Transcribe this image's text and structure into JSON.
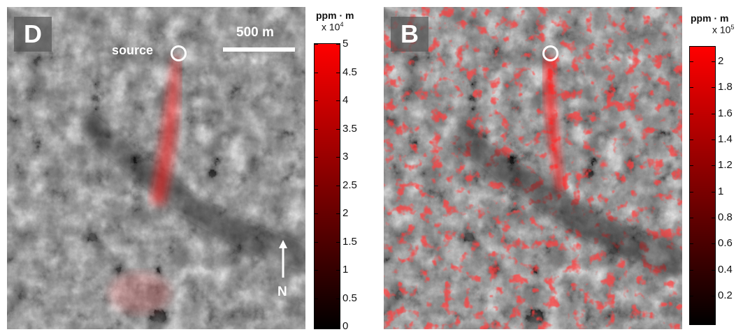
{
  "panel_d": {
    "letter": "D",
    "source_label": "source",
    "scale_label": "500 m",
    "north_label": "N"
  },
  "panel_b": {
    "letter": "B"
  },
  "colorbar_d": {
    "unit": "ppm · m",
    "exponent_base": "x 10",
    "exponent_power": "4",
    "ticks": [
      "0",
      "0.5",
      "1",
      "1.5",
      "2",
      "2.5",
      "3",
      "3.5",
      "4",
      "4.5",
      "5"
    ],
    "colors": {
      "low": "#000000",
      "high": "#ff0000"
    }
  },
  "colorbar_b": {
    "unit": "ppm · m",
    "exponent_base": "x 10",
    "exponent_power": "5",
    "ticks": [
      "0.2",
      "0.4",
      "0.6",
      "0.8",
      "1",
      "1.2",
      "1.4",
      "1.6",
      "1.8",
      "2"
    ],
    "colors": {
      "low": "#000000",
      "high": "#ff0000"
    }
  }
}
